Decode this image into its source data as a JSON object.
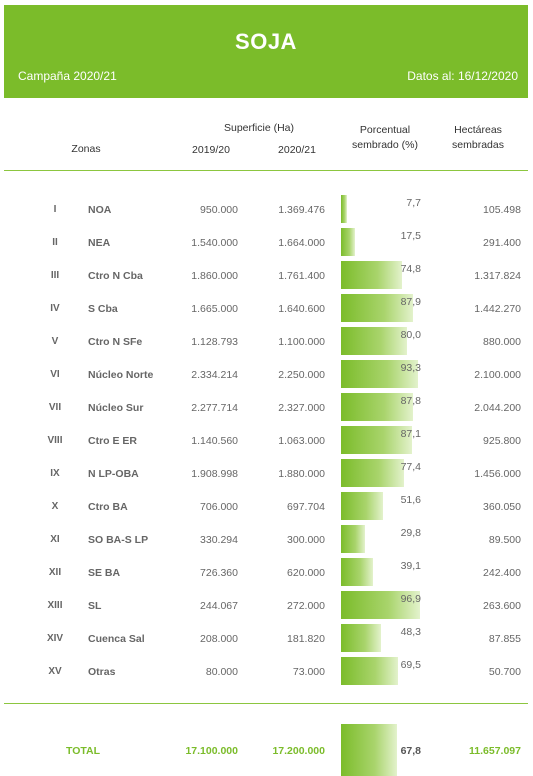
{
  "header": {
    "title": "SOJA",
    "campaign": "Campaña 2020/21",
    "date": "Datos al: 16/12/2020"
  },
  "columns": {
    "superficie": "Superficie (Ha)",
    "zonas": "Zonas",
    "y2019": "2019/20",
    "y2020": "2020/21",
    "porcentual_1": "Porcentual",
    "porcentual_2": "sembrado (%)",
    "hectareas_1": "Hectáreas",
    "hectareas_2": "sembradas"
  },
  "rows": [
    {
      "roman": "I",
      "zone": "NOA",
      "v2019": "950.000",
      "v2020": "1.369.476",
      "pct": "7,7",
      "pct_value": 7.7,
      "ha": "105.498"
    },
    {
      "roman": "II",
      "zone": "NEA",
      "v2019": "1.540.000",
      "v2020": "1.664.000",
      "pct": "17,5",
      "pct_value": 17.5,
      "ha": "291.400"
    },
    {
      "roman": "III",
      "zone": "Ctro N Cba",
      "v2019": "1.860.000",
      "v2020": "1.761.400",
      "pct": "74,8",
      "pct_value": 74.8,
      "ha": "1.317.824"
    },
    {
      "roman": "IV",
      "zone": "S Cba",
      "v2019": "1.665.000",
      "v2020": "1.640.600",
      "pct": "87,9",
      "pct_value": 87.9,
      "ha": "1.442.270"
    },
    {
      "roman": "V",
      "zone": "Ctro N SFe",
      "v2019": "1.128.793",
      "v2020": "1.100.000",
      "pct": "80,0",
      "pct_value": 80.0,
      "ha": "880.000"
    },
    {
      "roman": "VI",
      "zone": "Núcleo Norte",
      "v2019": "2.334.214",
      "v2020": "2.250.000",
      "pct": "93,3",
      "pct_value": 93.3,
      "ha": "2.100.000"
    },
    {
      "roman": "VII",
      "zone": "Núcleo Sur",
      "v2019": "2.277.714",
      "v2020": "2.327.000",
      "pct": "87,8",
      "pct_value": 87.8,
      "ha": "2.044.200"
    },
    {
      "roman": "VIII",
      "zone": "Ctro E ER",
      "v2019": "1.140.560",
      "v2020": "1.063.000",
      "pct": "87,1",
      "pct_value": 87.1,
      "ha": "925.800"
    },
    {
      "roman": "IX",
      "zone": "N LP-OBA",
      "v2019": "1.908.998",
      "v2020": "1.880.000",
      "pct": "77,4",
      "pct_value": 77.4,
      "ha": "1.456.000"
    },
    {
      "roman": "X",
      "zone": "Ctro BA",
      "v2019": "706.000",
      "v2020": "697.704",
      "pct": "51,6",
      "pct_value": 51.6,
      "ha": "360.050"
    },
    {
      "roman": "XI",
      "zone": "SO BA-S LP",
      "v2019": "330.294",
      "v2020": "300.000",
      "pct": "29,8",
      "pct_value": 29.8,
      "ha": "89.500"
    },
    {
      "roman": "XII",
      "zone": "SE BA",
      "v2019": "726.360",
      "v2020": "620.000",
      "pct": "39,1",
      "pct_value": 39.1,
      "ha": "242.400"
    },
    {
      "roman": "XIII",
      "zone": "SL",
      "v2019": "244.067",
      "v2020": "272.000",
      "pct": "96,9",
      "pct_value": 96.9,
      "ha": "263.600"
    },
    {
      "roman": "XIV",
      "zone": "Cuenca Sal",
      "v2019": "208.000",
      "v2020": "181.820",
      "pct": "48,3",
      "pct_value": 48.3,
      "ha": "87.855"
    },
    {
      "roman": "XV",
      "zone": "Otras",
      "v2019": "80.000",
      "v2020": "73.000",
      "pct": "69,5",
      "pct_value": 69.5,
      "ha": "50.700"
    }
  ],
  "total": {
    "label": "TOTAL",
    "v2019": "17.100.000",
    "v2020": "17.200.000",
    "pct": "67,8",
    "pct_value": 67.8,
    "ha": "11.657.097"
  },
  "colors": {
    "accent": "#7bbc2a"
  }
}
